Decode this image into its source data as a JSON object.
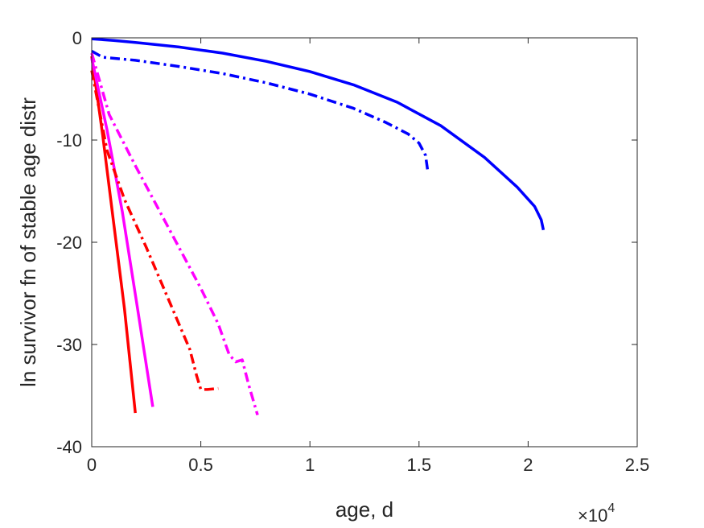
{
  "chart_data": {
    "type": "line",
    "title": "",
    "xlabel": "age, d",
    "ylabel": "ln survivor fn of stable age distr",
    "x_exponent_label": "×10",
    "x_exponent_power": "4",
    "xlim": [
      0,
      25000
    ],
    "ylim": [
      -40,
      0
    ],
    "x_ticks": [
      0,
      5000,
      10000,
      15000,
      20000,
      25000
    ],
    "x_tick_labels": [
      "0",
      "0.5",
      "1",
      "1.5",
      "2",
      "2.5"
    ],
    "y_ticks": [
      0,
      -10,
      -20,
      -30,
      -40
    ],
    "y_tick_labels": [
      "0",
      "-10",
      "-20",
      "-30",
      "-40"
    ],
    "grid": false,
    "legend": "none",
    "series": [
      {
        "color": "#0000ff",
        "style": "solid",
        "x": [
          0,
          1000,
          2000,
          4000,
          6000,
          8000,
          10000,
          12000,
          14000,
          16000,
          18000,
          19500,
          20300,
          20600,
          20700
        ],
        "y": [
          -0.1,
          -0.25,
          -0.45,
          -0.9,
          -1.5,
          -2.3,
          -3.3,
          -4.6,
          -6.3,
          -8.6,
          -11.7,
          -14.6,
          -16.5,
          -17.8,
          -18.8
        ]
      },
      {
        "color": "#0000ff",
        "style": "dashdot",
        "x": [
          0,
          500,
          2000,
          4000,
          6000,
          8000,
          10000,
          12000,
          13500,
          14500,
          15000,
          15300,
          15400
        ],
        "y": [
          -1.3,
          -1.9,
          -2.2,
          -2.8,
          -3.5,
          -4.4,
          -5.5,
          -6.9,
          -8.3,
          -9.4,
          -10.3,
          -11.5,
          -13.0
        ]
      },
      {
        "color": "#ff0000",
        "style": "solid",
        "x": [
          0,
          500,
          1000,
          1500,
          2000
        ],
        "y": [
          -1.8,
          -9.5,
          -18.0,
          -26.5,
          -36.7
        ]
      },
      {
        "color": "#ff00ff",
        "style": "solid",
        "x": [
          0,
          700,
          1400,
          2100,
          2800
        ],
        "y": [
          -2.0,
          -9.0,
          -17.0,
          -26.5,
          -36.1
        ]
      },
      {
        "color": "#ff0000",
        "style": "dashdot",
        "x": [
          0,
          700,
          1500,
          2500,
          3500,
          4200,
          4500,
          4800,
          5000,
          5300,
          5800
        ],
        "y": [
          -3.2,
          -11.0,
          -15.8,
          -20.5,
          -25.5,
          -29.0,
          -30.5,
          -33.0,
          -34.4,
          -34.4,
          -34.3
        ]
      },
      {
        "color": "#ff00ff",
        "style": "dashdot",
        "x": [
          0,
          800,
          2000,
          3500,
          5000,
          5800,
          6300,
          6600,
          6900,
          7200,
          7600
        ],
        "y": [
          -1.5,
          -7.5,
          -12.5,
          -18.5,
          -24.5,
          -28.0,
          -31.0,
          -31.7,
          -31.5,
          -34.0,
          -36.9
        ]
      }
    ]
  }
}
